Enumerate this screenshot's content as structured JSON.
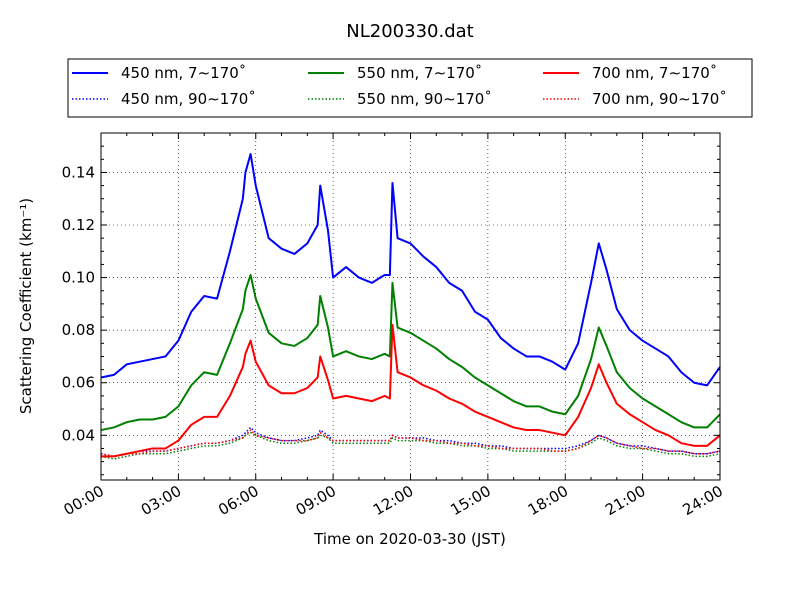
{
  "chart_data": {
    "type": "line",
    "title": "NL200330.dat",
    "xlabel": "Time on 2020-03-30 (JST)",
    "ylabel": "Scattering Coefficient (km⁻¹)",
    "x_unit": "hour of day",
    "xlim": [
      0,
      24
    ],
    "ylim": [
      0.023,
      0.155
    ],
    "x_ticks": [
      0,
      3,
      6,
      9,
      12,
      15,
      18,
      21,
      24
    ],
    "x_tick_labels": [
      "00:00",
      "03:00",
      "06:00",
      "09:00",
      "12:00",
      "15:00",
      "18:00",
      "21:00",
      "24:00"
    ],
    "y_ticks": [
      0.04,
      0.06,
      0.08,
      0.1,
      0.12,
      0.14
    ],
    "y_tick_labels": [
      "0.04",
      "0.06",
      "0.08",
      "0.10",
      "0.12",
      "0.14"
    ],
    "grid": true,
    "legend_placement": "top, above plot, 3 columns",
    "x": [
      0,
      0.5,
      1,
      1.5,
      2,
      2.5,
      3,
      3.5,
      4,
      4.5,
      5,
      5.5,
      5.6,
      5.8,
      6,
      6.5,
      7,
      7.5,
      8,
      8.4,
      8.5,
      8.8,
      9,
      9.5,
      10,
      10.5,
      11,
      11.2,
      11.3,
      11.5,
      12,
      12.5,
      13,
      13.5,
      14,
      14.5,
      15,
      15.5,
      16,
      16.5,
      17,
      17.5,
      18,
      18.5,
      19,
      19.3,
      19.6,
      20,
      20.5,
      21,
      21.5,
      22,
      22.5,
      23,
      23.5,
      24
    ],
    "series": [
      {
        "name": "450 nm, 7∼170˚",
        "color": "#0000ff",
        "style": "solid",
        "values": [
          0.062,
          0.063,
          0.067,
          0.068,
          0.069,
          0.07,
          0.076,
          0.087,
          0.093,
          0.092,
          0.11,
          0.13,
          0.14,
          0.147,
          0.135,
          0.115,
          0.111,
          0.109,
          0.113,
          0.12,
          0.135,
          0.118,
          0.1,
          0.104,
          0.1,
          0.098,
          0.101,
          0.101,
          0.136,
          0.115,
          0.113,
          0.108,
          0.104,
          0.098,
          0.095,
          0.087,
          0.084,
          0.077,
          0.073,
          0.07,
          0.07,
          0.068,
          0.065,
          0.075,
          0.098,
          0.113,
          0.103,
          0.088,
          0.08,
          0.076,
          0.073,
          0.07,
          0.064,
          0.06,
          0.059,
          0.066
        ]
      },
      {
        "name": "550 nm, 7∼170˚",
        "color": "#008000",
        "style": "solid",
        "values": [
          0.042,
          0.043,
          0.045,
          0.046,
          0.046,
          0.047,
          0.051,
          0.059,
          0.064,
          0.063,
          0.075,
          0.088,
          0.095,
          0.101,
          0.092,
          0.079,
          0.075,
          0.074,
          0.077,
          0.082,
          0.093,
          0.081,
          0.07,
          0.072,
          0.07,
          0.069,
          0.071,
          0.07,
          0.098,
          0.081,
          0.079,
          0.076,
          0.073,
          0.069,
          0.066,
          0.062,
          0.059,
          0.056,
          0.053,
          0.051,
          0.051,
          0.049,
          0.048,
          0.055,
          0.069,
          0.081,
          0.074,
          0.064,
          0.058,
          0.054,
          0.051,
          0.048,
          0.045,
          0.043,
          0.043,
          0.048
        ]
      },
      {
        "name": "700 nm, 7∼170˚",
        "color": "#ff0000",
        "style": "solid",
        "values": [
          0.032,
          0.032,
          0.033,
          0.034,
          0.035,
          0.035,
          0.038,
          0.044,
          0.047,
          0.047,
          0.055,
          0.066,
          0.071,
          0.076,
          0.068,
          0.059,
          0.056,
          0.056,
          0.058,
          0.062,
          0.07,
          0.061,
          0.054,
          0.055,
          0.054,
          0.053,
          0.055,
          0.054,
          0.082,
          0.064,
          0.062,
          0.059,
          0.057,
          0.054,
          0.052,
          0.049,
          0.047,
          0.045,
          0.043,
          0.042,
          0.042,
          0.041,
          0.04,
          0.047,
          0.058,
          0.067,
          0.06,
          0.052,
          0.048,
          0.045,
          0.042,
          0.04,
          0.037,
          0.036,
          0.036,
          0.04
        ]
      },
      {
        "name": "450 nm, 90∼170˚",
        "color": "#0000ff",
        "style": "dotted",
        "values": [
          0.033,
          0.032,
          0.033,
          0.034,
          0.034,
          0.034,
          0.035,
          0.036,
          0.037,
          0.037,
          0.038,
          0.04,
          0.041,
          0.043,
          0.041,
          0.039,
          0.038,
          0.038,
          0.039,
          0.04,
          0.042,
          0.04,
          0.038,
          0.038,
          0.038,
          0.038,
          0.038,
          0.038,
          0.04,
          0.039,
          0.039,
          0.039,
          0.038,
          0.038,
          0.037,
          0.037,
          0.036,
          0.036,
          0.035,
          0.035,
          0.035,
          0.035,
          0.035,
          0.036,
          0.038,
          0.04,
          0.039,
          0.037,
          0.036,
          0.036,
          0.035,
          0.034,
          0.034,
          0.033,
          0.033,
          0.034
        ]
      },
      {
        "name": "550 nm, 90∼170˚",
        "color": "#008000",
        "style": "dotted",
        "values": [
          0.032,
          0.031,
          0.032,
          0.033,
          0.033,
          0.033,
          0.034,
          0.035,
          0.036,
          0.036,
          0.037,
          0.039,
          0.04,
          0.041,
          0.04,
          0.038,
          0.037,
          0.037,
          0.038,
          0.039,
          0.04,
          0.039,
          0.037,
          0.037,
          0.037,
          0.037,
          0.037,
          0.037,
          0.039,
          0.038,
          0.038,
          0.038,
          0.037,
          0.037,
          0.036,
          0.036,
          0.035,
          0.035,
          0.034,
          0.034,
          0.034,
          0.034,
          0.034,
          0.035,
          0.037,
          0.039,
          0.038,
          0.036,
          0.035,
          0.035,
          0.034,
          0.033,
          0.033,
          0.032,
          0.032,
          0.033
        ]
      },
      {
        "name": "700 nm, 90∼170˚",
        "color": "#ff0000",
        "style": "dotted",
        "values": [
          0.033,
          0.032,
          0.033,
          0.033,
          0.034,
          0.034,
          0.035,
          0.036,
          0.037,
          0.037,
          0.038,
          0.039,
          0.04,
          0.042,
          0.04,
          0.039,
          0.038,
          0.038,
          0.038,
          0.039,
          0.041,
          0.039,
          0.038,
          0.038,
          0.038,
          0.038,
          0.038,
          0.038,
          0.04,
          0.039,
          0.039,
          0.038,
          0.038,
          0.037,
          0.037,
          0.036,
          0.036,
          0.035,
          0.035,
          0.035,
          0.035,
          0.034,
          0.034,
          0.035,
          0.038,
          0.04,
          0.039,
          0.037,
          0.036,
          0.035,
          0.035,
          0.034,
          0.034,
          0.033,
          0.033,
          0.034
        ]
      }
    ],
    "legend_order": [
      0,
      1,
      2,
      3,
      4,
      5
    ]
  }
}
